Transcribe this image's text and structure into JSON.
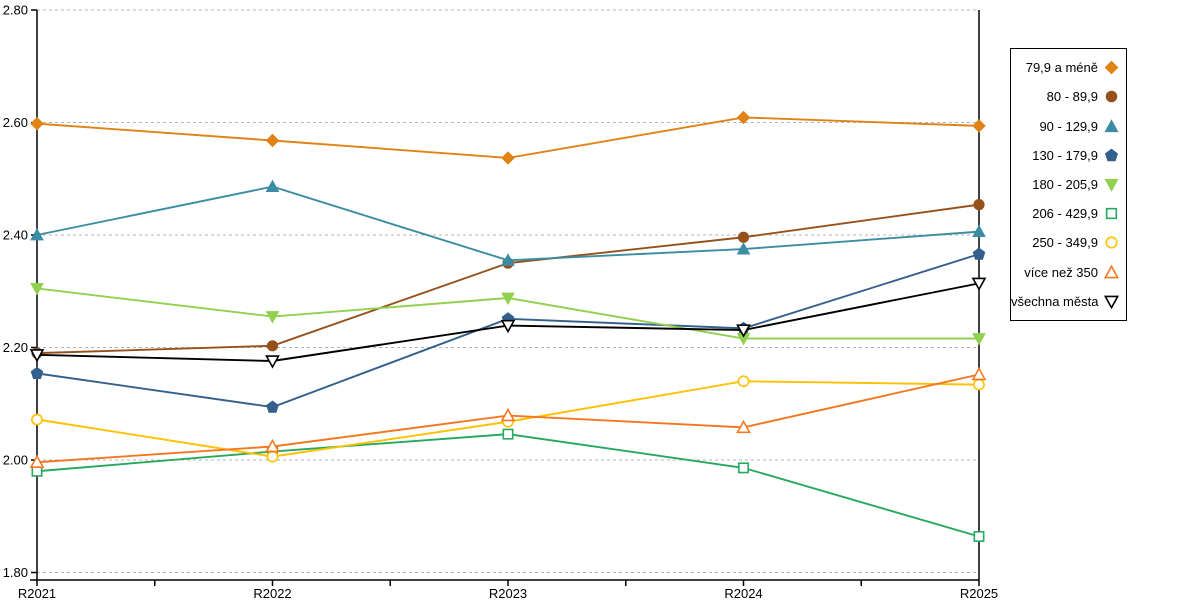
{
  "chart_data": {
    "type": "line",
    "title": "",
    "xlabel": "",
    "ylabel": "",
    "categories": [
      "R2021",
      "R2022",
      "R2023",
      "R2024",
      "R2025"
    ],
    "y_axis": {
      "min": 1.8,
      "max": 2.8,
      "tick_step": 0.2,
      "tick_labels": [
        "2.80",
        "2.60",
        "2.40",
        "2.20",
        "2.00",
        "1.80"
      ],
      "tick_values": [
        2.8,
        2.6,
        2.4,
        2.2,
        2.0,
        1.8
      ]
    },
    "grid": "horizontal-dashed",
    "grid_color": "#b3b3b3",
    "legend_position": "right",
    "series": [
      {
        "name": "79,9 a méně",
        "color": "#e08214",
        "marker": "diamond",
        "fill": "filled",
        "values": [
          2.598,
          2.568,
          2.537,
          2.609,
          2.594
        ]
      },
      {
        "name": "80 - 89,9",
        "color": "#96511b",
        "marker": "circle",
        "fill": "filled",
        "values": [
          2.19,
          2.203,
          2.35,
          2.396,
          2.454
        ]
      },
      {
        "name": "90 - 129,9",
        "color": "#3c8da3",
        "marker": "triangle-up",
        "fill": "filled",
        "values": [
          2.4,
          2.486,
          2.355,
          2.375,
          2.406
        ]
      },
      {
        "name": "130 - 179,9",
        "color": "#33608c",
        "marker": "pentagon",
        "fill": "filled",
        "values": [
          2.154,
          2.094,
          2.251,
          2.234,
          2.366
        ]
      },
      {
        "name": "180 - 205,9",
        "color": "#92d050",
        "marker": "triangle-down",
        "fill": "filled",
        "values": [
          2.305,
          2.255,
          2.288,
          2.216,
          2.216
        ]
      },
      {
        "name": "206 - 429,9",
        "color": "#27a85f",
        "marker": "square",
        "fill": "open",
        "values": [
          1.98,
          2.015,
          2.046,
          1.986,
          1.864
        ]
      },
      {
        "name": "250 - 349,9",
        "color": "#ffc000",
        "marker": "circle",
        "fill": "open",
        "values": [
          2.072,
          2.006,
          2.068,
          2.14,
          2.134
        ]
      },
      {
        "name": "více než 350",
        "color": "#f47721",
        "marker": "triangle-up",
        "fill": "open",
        "values": [
          1.996,
          2.024,
          2.079,
          2.058,
          2.152
        ]
      },
      {
        "name": "všechna města",
        "color": "#000000",
        "marker": "triangle-down",
        "fill": "open",
        "values": [
          2.187,
          2.176,
          2.239,
          2.231,
          2.314
        ]
      }
    ]
  }
}
